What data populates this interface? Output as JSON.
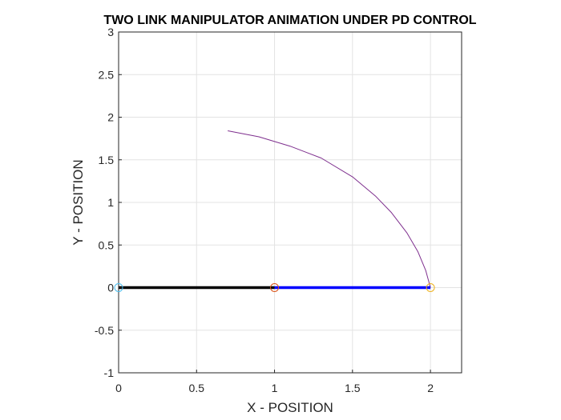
{
  "chart_data": {
    "type": "line",
    "title": "TWO LINK MANIPULATOR ANIMATION UNDER PD CONTROL",
    "xlabel": "X - POSITION",
    "ylabel": "Y - POSITION",
    "xlim": [
      0,
      2.2
    ],
    "ylim": [
      -1,
      3
    ],
    "xticks": [
      0,
      0.5,
      1,
      1.5,
      2
    ],
    "xtick_labels": [
      "0",
      "0.5",
      "1",
      "1.5",
      "2"
    ],
    "yticks": [
      -1,
      -0.5,
      0,
      0.5,
      1,
      1.5,
      2,
      2.5,
      3
    ],
    "ytick_labels": [
      "-1",
      "-0.5",
      "0",
      "0.5",
      "1",
      "1.5",
      "2",
      "2.5",
      "3"
    ],
    "grid": true,
    "series": [
      {
        "kind": "trajectory",
        "color": "#7e2f8e",
        "x": [
          0.7,
          0.9,
          1.1,
          1.3,
          1.5,
          1.65,
          1.75,
          1.85,
          1.92,
          1.97,
          2.0
        ],
        "y": [
          1.84,
          1.77,
          1.66,
          1.52,
          1.3,
          1.07,
          0.88,
          0.64,
          0.42,
          0.2,
          0.0
        ]
      },
      {
        "kind": "link-1",
        "color": "#000000",
        "x": [
          0,
          1
        ],
        "y": [
          0,
          0
        ]
      },
      {
        "kind": "link-2",
        "color": "#0000ff",
        "x": [
          1,
          2
        ],
        "y": [
          0,
          0
        ]
      }
    ],
    "markers": [
      {
        "kind": "base-joint",
        "x": 0,
        "y": 0,
        "color": "#4dbeee"
      },
      {
        "kind": "elbow-joint",
        "x": 1,
        "y": 0,
        "color": "#d95319"
      },
      {
        "kind": "end-effector",
        "x": 2,
        "y": 0,
        "color": "#edb120"
      }
    ]
  }
}
